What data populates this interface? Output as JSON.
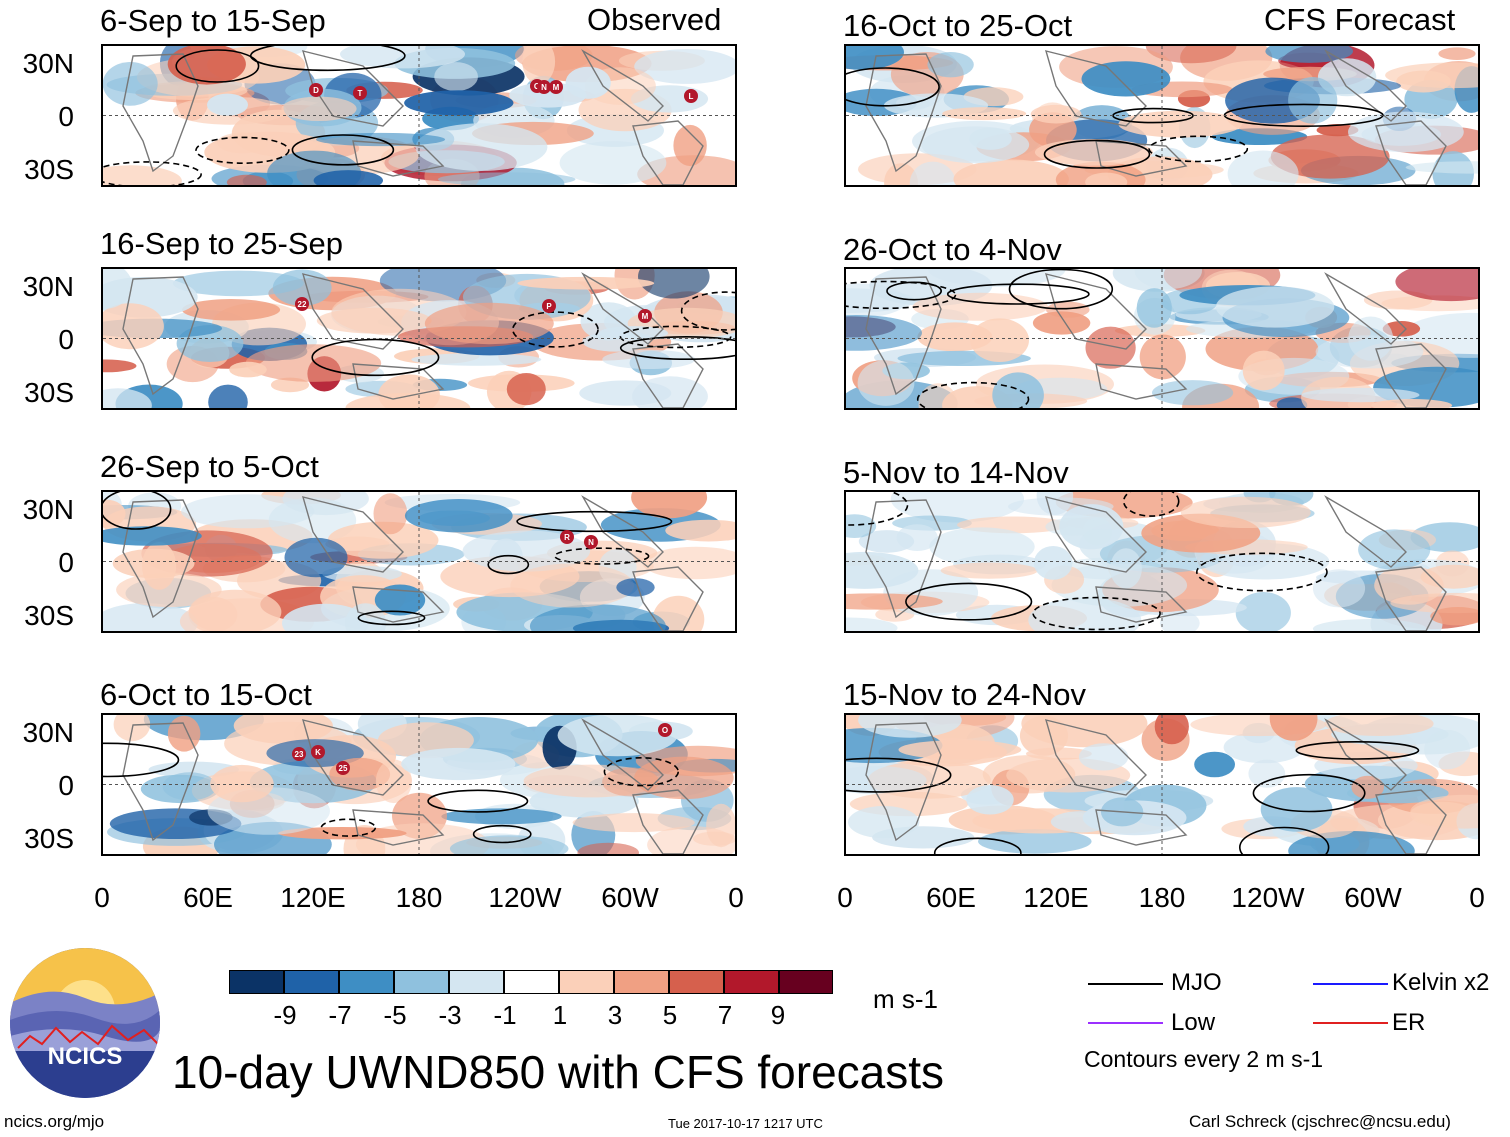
{
  "columns": {
    "left_title": "Observed",
    "right_title": "CFS Forecast"
  },
  "lat_labels": [
    "30N",
    "0",
    "30S"
  ],
  "lon_labels": [
    "0",
    "60E",
    "120E",
    "180",
    "120W",
    "60W",
    "0"
  ],
  "panels_left": [
    {
      "date": "6-Sep to 15-Sep",
      "markers": [
        "D",
        "T",
        "O",
        "N",
        "M",
        "L"
      ]
    },
    {
      "date": "16-Sep to 25-Sep",
      "markers": [
        "22",
        "P",
        "M"
      ]
    },
    {
      "date": "26-Sep to 5-Oct",
      "markers": [
        "R",
        "N"
      ]
    },
    {
      "date": "6-Oct to 15-Oct",
      "markers": [
        "23",
        "K",
        "25",
        "O"
      ]
    }
  ],
  "panels_right": [
    {
      "date": "16-Oct to 25-Oct"
    },
    {
      "date": "26-Oct to 4-Nov"
    },
    {
      "date": "5-Nov to 14-Nov"
    },
    {
      "date": "15-Nov to 24-Nov"
    }
  ],
  "colorbar": {
    "ticks": [
      "-9",
      "-7",
      "-5",
      "-3",
      "-1",
      "1",
      "3",
      "5",
      "7",
      "9"
    ],
    "colors": [
      "#0b3366",
      "#1f62a8",
      "#3e8ec4",
      "#8fc1de",
      "#d4e6f1",
      "#ffffff",
      "#fbd0b9",
      "#f0a083",
      "#d6604d",
      "#b2182b",
      "#67001f"
    ],
    "units": "m s-1"
  },
  "legend": {
    "mjo": "MJO",
    "kelvin": "Kelvin x2",
    "low": "Low",
    "er": "ER",
    "note": "Contours every 2 m s-1",
    "colors": {
      "mjo": "#000000",
      "kelvin": "#1a1aff",
      "low": "#9b30ff",
      "er": "#e02020"
    }
  },
  "title": "10-day UWND850 with CFS forecasts",
  "logo_text": "NCICS",
  "footer": {
    "left": "ncics.org/mjo",
    "center": "Tue 2017-10-17 1217 UTC",
    "right": "Carl Schreck (cjschrec@ncsu.edu)"
  },
  "chart_data": {
    "type": "heatmap",
    "title": "10-day UWND850 with CFS forecasts",
    "variable": "850-hPa zonal wind anomaly",
    "units": "m s-1",
    "color_levels": [
      -9,
      -7,
      -5,
      -3,
      -1,
      1,
      3,
      5,
      7,
      9
    ],
    "x_ticks": [
      "0",
      "60E",
      "120E",
      "180",
      "120W",
      "60W",
      "0"
    ],
    "y_ticks": [
      "30N",
      "0",
      "30S"
    ],
    "xlim": [
      0,
      360
    ],
    "ylim": [
      -40,
      40
    ],
    "contour_interval": 2,
    "panels": [
      {
        "source": "Observed",
        "period": "6-Sep to 15-Sep"
      },
      {
        "source": "Observed",
        "period": "16-Sep to 25-Sep"
      },
      {
        "source": "Observed",
        "period": "26-Sep to 5-Oct"
      },
      {
        "source": "Observed",
        "period": "6-Oct to 15-Oct"
      },
      {
        "source": "CFS Forecast",
        "period": "16-Oct to 25-Oct"
      },
      {
        "source": "CFS Forecast",
        "period": "26-Oct to 4-Nov"
      },
      {
        "source": "CFS Forecast",
        "period": "5-Nov to 14-Nov"
      },
      {
        "source": "CFS Forecast",
        "period": "15-Nov to 24-Nov"
      }
    ]
  }
}
